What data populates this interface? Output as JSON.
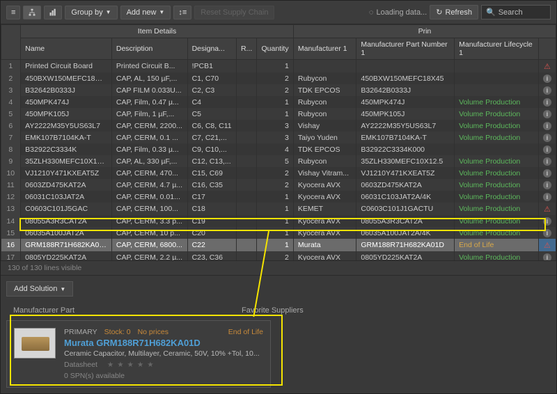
{
  "toolbar": {
    "group_by": "Group by",
    "add_new": "Add new",
    "reset": "Reset Supply Chain",
    "loading": "Loading data...",
    "refresh": "Refresh",
    "search_placeholder": "Search"
  },
  "columns": {
    "item_details": "Item Details",
    "prin": "Prin",
    "name": "Name",
    "description": "Description",
    "designator": "Designa...",
    "r": "R...",
    "quantity": "Quantity",
    "mfr1": "Manufacturer 1",
    "mpn1": "Manufacturer Part Number 1",
    "lifecycle1": "Manufacturer Lifecycle 1"
  },
  "lifecycle": {
    "volume": "Volume Production",
    "eol": "End of Life"
  },
  "rows": [
    {
      "n": "1",
      "name": "Printed Circuit Board",
      "desc": "Printed Circuit B...",
      "des": "!PCB1",
      "qty": "1",
      "mfr": "",
      "mpn": "",
      "life": "",
      "ic": "warn"
    },
    {
      "n": "2",
      "name": "450BXW150MEFC18X45",
      "desc": "CAP, AL, 150 µF,...",
      "des": "C1, C70",
      "qty": "2",
      "mfr": "Rubycon",
      "mpn": "450BXW150MEFC18X45",
      "life": "",
      "ic": "info"
    },
    {
      "n": "3",
      "name": "B32642B0333J",
      "desc": "CAP FILM 0.033U...",
      "des": "C2, C3",
      "qty": "2",
      "mfr": "TDK EPCOS",
      "mpn": "B32642B0333J",
      "life": "",
      "ic": "info"
    },
    {
      "n": "4",
      "name": "450MPK474J",
      "desc": "CAP, Film, 0.47 µ...",
      "des": "C4",
      "qty": "1",
      "mfr": "Rubycon",
      "mpn": "450MPK474J",
      "life": "vol",
      "ic": "info"
    },
    {
      "n": "5",
      "name": "450MPK105J",
      "desc": "CAP, Film, 1 µF,...",
      "des": "C5",
      "qty": "1",
      "mfr": "Rubycon",
      "mpn": "450MPK105J",
      "life": "vol",
      "ic": "info"
    },
    {
      "n": "6",
      "name": "AY2222M35Y5US63L7",
      "desc": "CAP, CERM, 2200...",
      "des": "C6, C8, C11",
      "qty": "3",
      "mfr": "Vishay",
      "mpn": "AY2222M35Y5US63L7",
      "life": "vol",
      "ic": "info"
    },
    {
      "n": "7",
      "name": "EMK107B7104KA-T",
      "desc": "CAP, CERM, 0.1 ...",
      "des": "C7, C21,...",
      "qty": "3",
      "mfr": "Taiyo Yuden",
      "mpn": "EMK107B7104KA-T",
      "life": "vol",
      "ic": "info"
    },
    {
      "n": "8",
      "name": "B32922C3334K",
      "desc": "CAP, Film, 0.33 µ...",
      "des": "C9, C10,...",
      "qty": "4",
      "mfr": "TDK EPCOS",
      "mpn": "B32922C3334K000",
      "life": "",
      "ic": "info"
    },
    {
      "n": "9",
      "name": "35ZLH330MEFC10X12.5",
      "desc": "CAP, AL, 330 µF,...",
      "des": "C12, C13,...",
      "qty": "5",
      "mfr": "Rubycon",
      "mpn": "35ZLH330MEFC10X12.5",
      "life": "vol",
      "ic": "info"
    },
    {
      "n": "10",
      "name": "VJ1210Y471KXEAT5Z",
      "desc": "CAP, CERM, 470...",
      "des": "C15, C69",
      "qty": "2",
      "mfr": "Vishay Vitram...",
      "mpn": "VJ1210Y471KXEAT5Z",
      "life": "vol",
      "ic": "info"
    },
    {
      "n": "11",
      "name": "0603ZD475KAT2A",
      "desc": "CAP, CERM, 4.7 µ...",
      "des": "C16, C35",
      "qty": "2",
      "mfr": "Kyocera AVX",
      "mpn": "0603ZD475KAT2A",
      "life": "vol",
      "ic": "info"
    },
    {
      "n": "12",
      "name": "06031C103JAT2A",
      "desc": "CAP, CERM, 0.01...",
      "des": "C17",
      "qty": "1",
      "mfr": "Kyocera AVX",
      "mpn": "06031C103JAT2A/4K",
      "life": "vol",
      "ic": "info"
    },
    {
      "n": "13",
      "name": "C0603C101J5GAC",
      "desc": "CAP, CERM, 100...",
      "des": "C18",
      "qty": "1",
      "mfr": "KEMET",
      "mpn": "C0603C101J1GACTU",
      "life": "vol",
      "ic": "warn"
    },
    {
      "n": "14",
      "name": "08055A3R3CAT2A",
      "desc": "CAP, CERM, 3.3 p...",
      "des": "C19",
      "qty": "1",
      "mfr": "Kyocera AVX",
      "mpn": "08055A3R3CAT2A",
      "life": "vol",
      "ic": "info"
    },
    {
      "n": "15",
      "name": "06035A100JAT2A",
      "desc": "CAP, CERM, 10 p...",
      "des": "C20",
      "qty": "1",
      "mfr": "Kyocera AVX",
      "mpn": "06035A100JAT2A/4K",
      "life": "vol",
      "ic": "info"
    },
    {
      "n": "16",
      "name": "GRM188R71H682KA01D",
      "desc": "CAP, CERM, 6800...",
      "des": "C22",
      "qty": "1",
      "mfr": "Murata",
      "mpn": "GRM188R71H682KA01D",
      "life": "eol",
      "ic": "warn",
      "sel": true
    },
    {
      "n": "17",
      "name": "0805YD225KAT2A",
      "desc": "CAP, CERM, 2.2 µ...",
      "des": "C23, C36",
      "qty": "2",
      "mfr": "Kyocera AVX",
      "mpn": "0805YD225KAT2A",
      "life": "vol",
      "ic": "info"
    }
  ],
  "footer": "130 of 130 lines visible",
  "add_solution": "Add Solution",
  "tabs": {
    "mfr": "Manufacturer Part",
    "fav": "Favorite Suppliers"
  },
  "card": {
    "primary": "PRIMARY",
    "stock": "Stock: 0",
    "noprices": "No prices",
    "eol": "End of Life",
    "name": "Murata GRM188R71H682KA01D",
    "desc": "Ceramic Capacitor, Multilayer, Ceramic, 50V, 10% +Tol, 10...",
    "datasheet": "Datasheet",
    "stars": "★ ★ ★ ★ ★",
    "spn": "0 SPN(s) available"
  }
}
